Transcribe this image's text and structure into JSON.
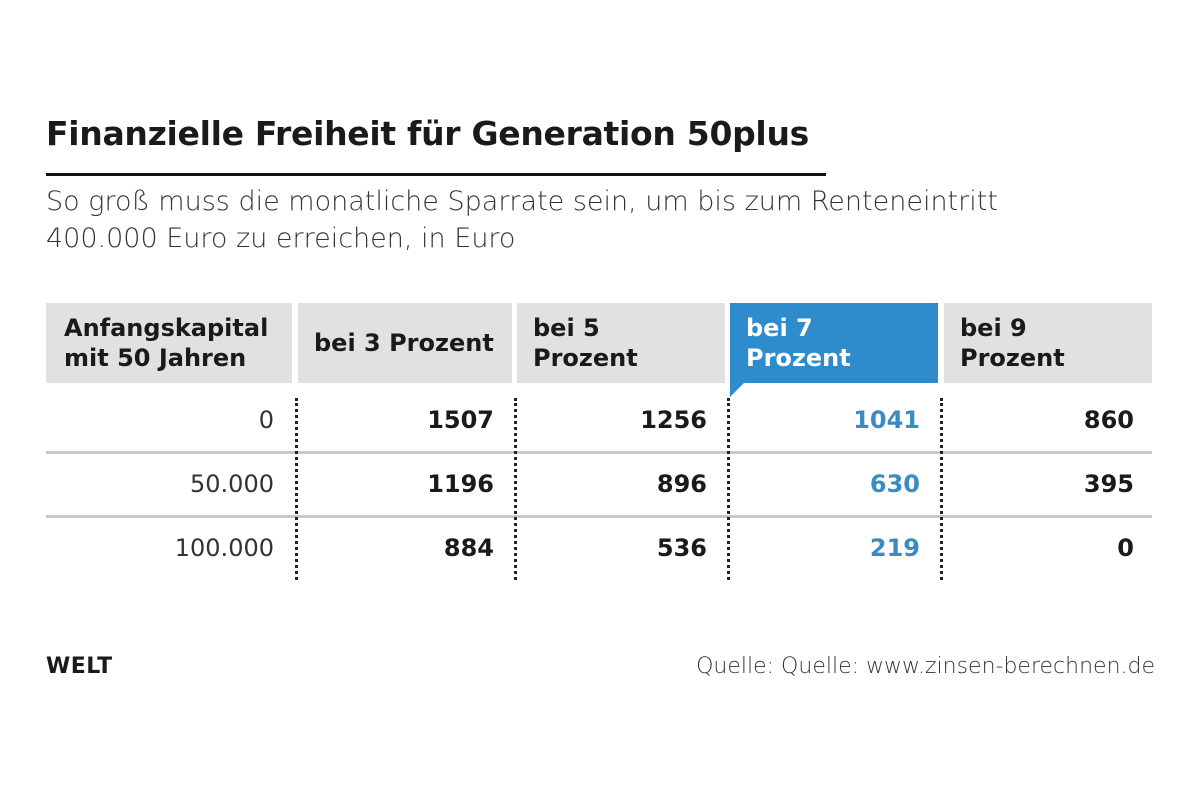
{
  "header": {
    "title": "Finanzielle Freiheit für Generation 50plus",
    "subtitle": [
      "So groß muss die monatliche Sparrate sein, um bis zum Renteneintritt",
      "400.000 Euro zu erreichen, in Euro"
    ]
  },
  "table": {
    "columns": [
      "Anfangskapital mit 50 Jahren",
      "bei 3 Prozent",
      "bei 5 Prozent",
      "bei 7 Prozent",
      "bei 9 Prozent"
    ],
    "rows": [
      [
        "0",
        "1507",
        "1256",
        "1041",
        "860"
      ],
      [
        "50.000",
        "1196",
        "896",
        "630",
        "395"
      ],
      [
        "100.000",
        "884",
        "536",
        "219",
        "0"
      ]
    ]
  },
  "footer": {
    "logo": "WELT",
    "source": "Quelle: Quelle: www.zinsen-berechnen.de"
  }
}
